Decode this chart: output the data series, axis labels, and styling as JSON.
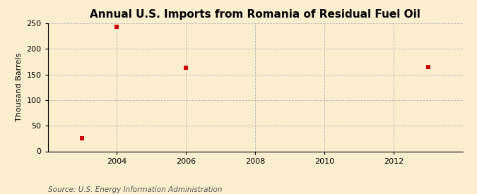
{
  "title": "Annual U.S. Imports from Romania of Residual Fuel Oil",
  "ylabel": "Thousand Barrels",
  "source": "Source: U.S. Energy Information Administration",
  "x_data": [
    2003,
    2004,
    2006,
    2013
  ],
  "y_data": [
    25,
    243,
    163,
    165
  ],
  "xlim": [
    2002.0,
    2014.0
  ],
  "ylim": [
    0,
    250
  ],
  "yticks": [
    0,
    50,
    100,
    150,
    200,
    250
  ],
  "xticks": [
    2004,
    2006,
    2008,
    2010,
    2012
  ],
  "marker_color": "#cc0000",
  "marker": "s",
  "marker_size": 4,
  "bg_color": "#faeecf",
  "plot_bg_color": "#faeecf",
  "grid_color": "#b0b0b0",
  "title_fontsize": 11,
  "label_fontsize": 8,
  "tick_fontsize": 8,
  "source_fontsize": 7.5
}
